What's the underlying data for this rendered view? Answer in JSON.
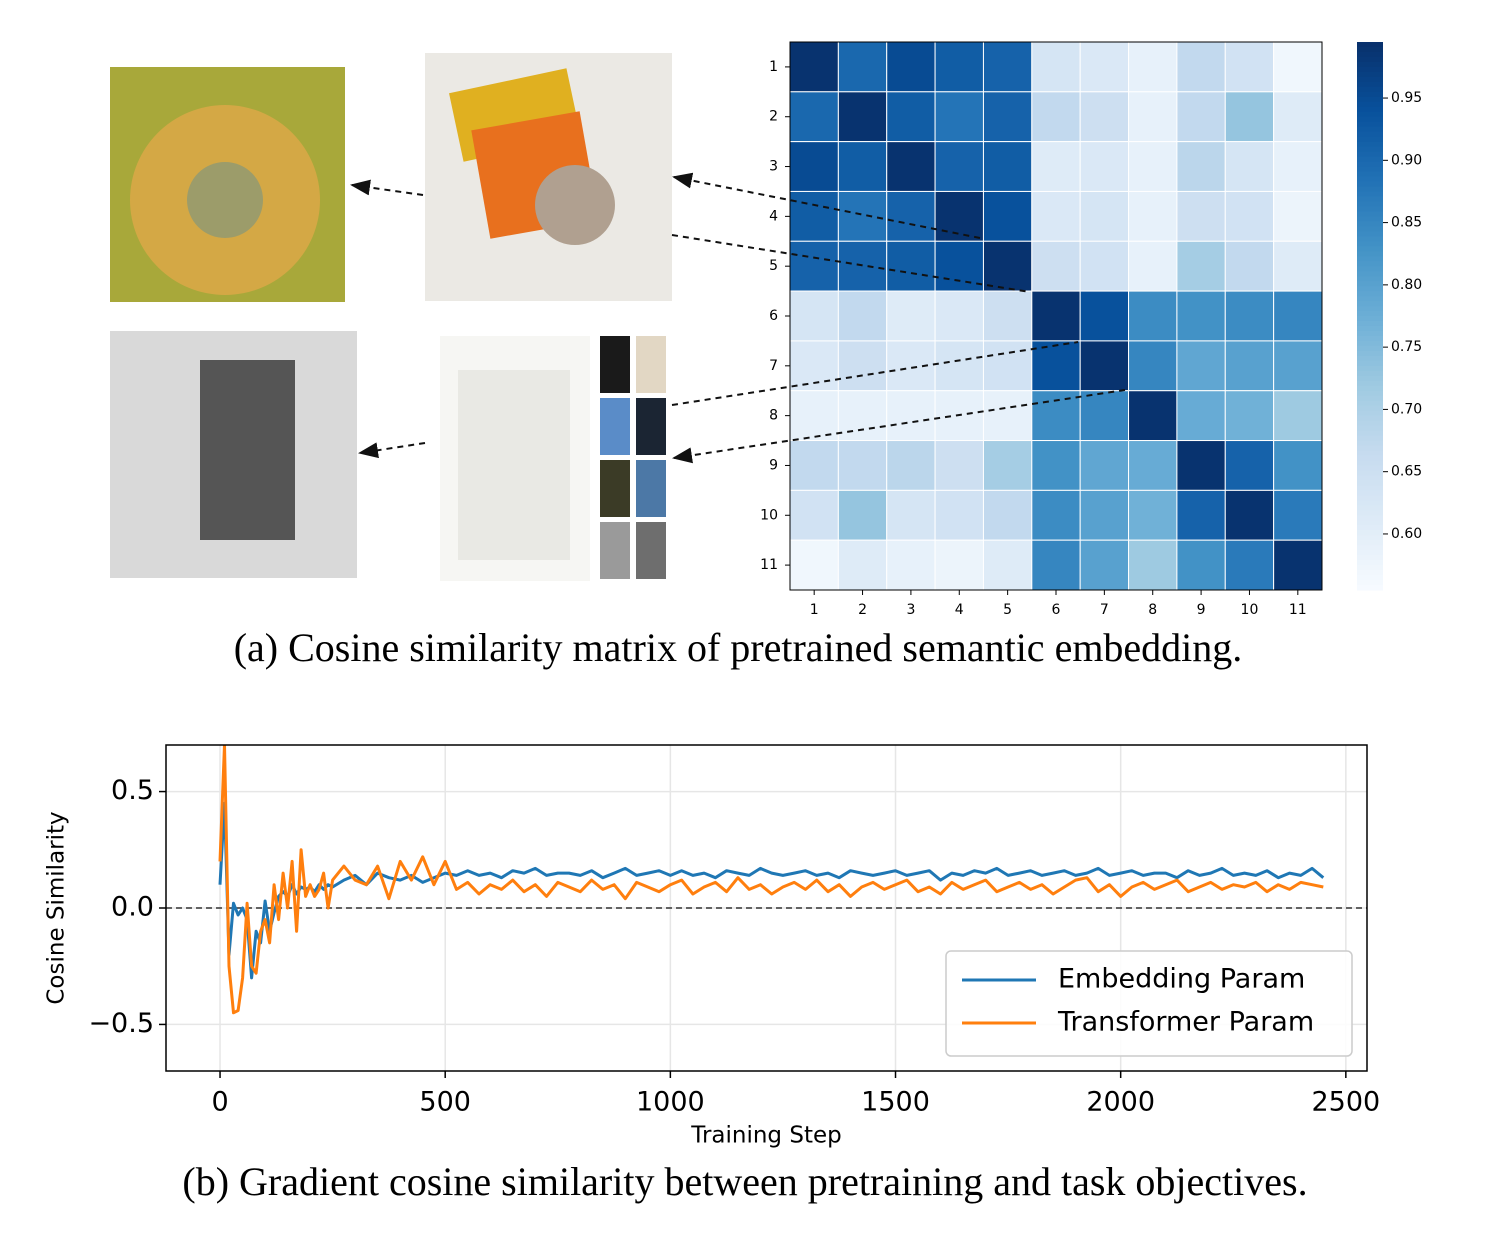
{
  "chart_data": [
    {
      "type": "heatmap",
      "caption": "(a) Cosine similarity matrix of pretrained semantic embedding.",
      "categories": [
        "1",
        "2",
        "3",
        "4",
        "5",
        "6",
        "7",
        "8",
        "9",
        "10",
        "11"
      ],
      "values": [
        [
          0.99,
          0.9,
          0.95,
          0.92,
          0.91,
          0.63,
          0.62,
          0.59,
          0.67,
          0.64,
          0.57
        ],
        [
          0.9,
          0.99,
          0.92,
          0.88,
          0.91,
          0.67,
          0.65,
          0.59,
          0.67,
          0.73,
          0.61
        ],
        [
          0.95,
          0.92,
          0.99,
          0.91,
          0.92,
          0.61,
          0.62,
          0.59,
          0.68,
          0.63,
          0.59
        ],
        [
          0.92,
          0.88,
          0.91,
          0.99,
          0.94,
          0.62,
          0.63,
          0.59,
          0.65,
          0.64,
          0.58
        ],
        [
          0.91,
          0.91,
          0.92,
          0.94,
          0.99,
          0.65,
          0.64,
          0.59,
          0.71,
          0.67,
          0.61
        ],
        [
          0.63,
          0.67,
          0.61,
          0.62,
          0.65,
          0.99,
          0.94,
          0.84,
          0.83,
          0.84,
          0.85
        ],
        [
          0.62,
          0.65,
          0.62,
          0.63,
          0.64,
          0.94,
          0.99,
          0.85,
          0.79,
          0.8,
          0.8
        ],
        [
          0.59,
          0.59,
          0.59,
          0.59,
          0.59,
          0.84,
          0.85,
          0.99,
          0.78,
          0.77,
          0.72
        ],
        [
          0.67,
          0.67,
          0.68,
          0.65,
          0.71,
          0.83,
          0.79,
          0.78,
          0.99,
          0.91,
          0.83
        ],
        [
          0.64,
          0.73,
          0.63,
          0.64,
          0.67,
          0.84,
          0.8,
          0.77,
          0.91,
          0.99,
          0.87
        ],
        [
          0.57,
          0.61,
          0.59,
          0.58,
          0.61,
          0.85,
          0.8,
          0.72,
          0.83,
          0.87,
          0.99
        ]
      ],
      "colormap": "Blues",
      "vlim": [
        0.555,
        0.995
      ],
      "colorbar_ticks": [
        {
          "value": 0.6,
          "label": "0.60"
        },
        {
          "value": 0.65,
          "label": "0.65"
        },
        {
          "value": 0.7,
          "label": "0.70"
        },
        {
          "value": 0.75,
          "label": "0.75"
        },
        {
          "value": 0.8,
          "label": "0.80"
        },
        {
          "value": 0.85,
          "label": "0.85"
        },
        {
          "value": 0.9,
          "label": "0.90"
        },
        {
          "value": 0.95,
          "label": "0.95"
        }
      ]
    },
    {
      "type": "line",
      "caption": "(b) Gradient cosine similarity between pretraining and task objectives.",
      "xlabel": "Training Step",
      "ylabel": "Cosine Similarity",
      "x": [
        0,
        10,
        20,
        30,
        40,
        50,
        60,
        70,
        80,
        90,
        100,
        110,
        120,
        130,
        140,
        150,
        160,
        170,
        180,
        190,
        200,
        210,
        220,
        230,
        240,
        250,
        275,
        300,
        325,
        350,
        375,
        400,
        425,
        450,
        475,
        500,
        525,
        550,
        575,
        600,
        625,
        650,
        675,
        700,
        725,
        750,
        775,
        800,
        825,
        850,
        875,
        900,
        925,
        950,
        975,
        1000,
        1025,
        1050,
        1075,
        1100,
        1125,
        1150,
        1175,
        1200,
        1225,
        1250,
        1275,
        1300,
        1325,
        1350,
        1375,
        1400,
        1425,
        1450,
        1475,
        1500,
        1525,
        1550,
        1575,
        1600,
        1625,
        1650,
        1675,
        1700,
        1725,
        1750,
        1775,
        1800,
        1825,
        1850,
        1875,
        1900,
        1925,
        1950,
        1975,
        2000,
        2025,
        2050,
        2075,
        2100,
        2125,
        2150,
        2175,
        2200,
        2225,
        2250,
        2275,
        2300,
        2325,
        2350,
        2375,
        2400,
        2425,
        2450
      ],
      "series": [
        {
          "name": "Embedding Param",
          "color": "#1f77b4",
          "values": [
            0.1,
            0.45,
            -0.2,
            0.02,
            -0.03,
            0.0,
            -0.05,
            -0.3,
            -0.1,
            -0.15,
            0.03,
            -0.1,
            -0.02,
            0.05,
            0.07,
            0.05,
            0.1,
            0.06,
            0.09,
            0.08,
            0.09,
            0.07,
            0.1,
            0.08,
            0.1,
            0.09,
            0.12,
            0.14,
            0.1,
            0.15,
            0.13,
            0.12,
            0.14,
            0.11,
            0.13,
            0.15,
            0.14,
            0.16,
            0.14,
            0.15,
            0.13,
            0.16,
            0.15,
            0.17,
            0.14,
            0.15,
            0.15,
            0.14,
            0.16,
            0.13,
            0.15,
            0.17,
            0.14,
            0.15,
            0.16,
            0.14,
            0.16,
            0.14,
            0.15,
            0.13,
            0.16,
            0.15,
            0.14,
            0.17,
            0.15,
            0.14,
            0.15,
            0.16,
            0.14,
            0.15,
            0.13,
            0.16,
            0.15,
            0.14,
            0.15,
            0.16,
            0.14,
            0.15,
            0.16,
            0.12,
            0.15,
            0.14,
            0.16,
            0.15,
            0.17,
            0.14,
            0.15,
            0.16,
            0.14,
            0.15,
            0.16,
            0.14,
            0.15,
            0.17,
            0.14,
            0.15,
            0.16,
            0.14,
            0.15,
            0.15,
            0.13,
            0.16,
            0.14,
            0.15,
            0.17,
            0.14,
            0.15,
            0.14,
            0.16,
            0.13,
            0.15,
            0.14,
            0.17,
            0.13
          ]
        },
        {
          "name": "Transformer Param",
          "color": "#ff7f0e",
          "values": [
            0.2,
            0.7,
            -0.25,
            -0.45,
            -0.44,
            -0.3,
            0.02,
            -0.25,
            -0.28,
            -0.1,
            -0.05,
            -0.15,
            0.1,
            -0.05,
            0.15,
            0.0,
            0.2,
            -0.1,
            0.25,
            0.05,
            0.1,
            0.05,
            0.08,
            0.15,
            0.0,
            0.12,
            0.18,
            0.12,
            0.1,
            0.18,
            0.04,
            0.2,
            0.12,
            0.22,
            0.1,
            0.2,
            0.08,
            0.11,
            0.06,
            0.1,
            0.08,
            0.12,
            0.07,
            0.1,
            0.05,
            0.11,
            0.09,
            0.07,
            0.12,
            0.08,
            0.1,
            0.04,
            0.11,
            0.09,
            0.07,
            0.1,
            0.12,
            0.06,
            0.09,
            0.11,
            0.07,
            0.13,
            0.08,
            0.1,
            0.06,
            0.09,
            0.11,
            0.08,
            0.12,
            0.07,
            0.1,
            0.05,
            0.09,
            0.11,
            0.08,
            0.1,
            0.12,
            0.07,
            0.09,
            0.06,
            0.11,
            0.08,
            0.1,
            0.12,
            0.07,
            0.09,
            0.11,
            0.08,
            0.1,
            0.06,
            0.09,
            0.12,
            0.13,
            0.07,
            0.1,
            0.05,
            0.09,
            0.11,
            0.08,
            0.1,
            0.12,
            0.07,
            0.09,
            0.11,
            0.08,
            0.1,
            0.09,
            0.11,
            0.07,
            0.1,
            0.08,
            0.11,
            0.1,
            0.09
          ]
        }
      ],
      "xlim": [
        -120,
        2547
      ],
      "ylim": [
        -0.7,
        0.7
      ],
      "xticks": [
        0,
        500,
        1000,
        1500,
        2000,
        2500
      ],
      "yticks": [
        {
          "value": -0.5,
          "label": "−0.5"
        },
        {
          "value": 0,
          "label": "0.0"
        },
        {
          "value": 0.5,
          "label": "0.5"
        }
      ],
      "hline": 0,
      "grid": true,
      "legend": "lower right"
    }
  ]
}
